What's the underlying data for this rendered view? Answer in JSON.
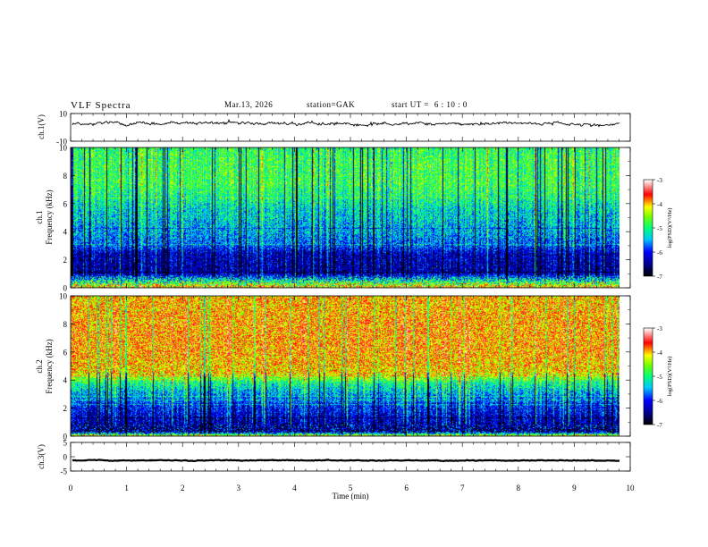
{
  "header": {
    "title": "VLF Spectra",
    "date": "Mar.13, 2026",
    "station": "station=GAK",
    "start_label": "start UT =",
    "start_time": "6 : 10 : 0"
  },
  "colors": {
    "waveform": "#000000",
    "colormap": [
      "#000000",
      "#0000ff",
      "#00d0ff",
      "#00ff60",
      "#ffff00",
      "#ff0000",
      "#ffffff"
    ]
  },
  "chart_data": [
    {
      "type": "line",
      "id": "ch1-waveform",
      "ylabel": "ch.1(V)",
      "ylim": [
        -10,
        10
      ],
      "ytick_labels": [
        "10",
        "-10"
      ],
      "x_range_min": [
        0,
        9.83
      ],
      "baseline_v": 2.8,
      "noise_v": 1.2
    },
    {
      "type": "heatmap",
      "id": "ch1-spectrogram",
      "ylabel_line1": "ch.1",
      "ylabel_line2": "Frequency (kHz)",
      "ylim": [
        0,
        10
      ],
      "ytick_labels": [
        "0",
        "2",
        "4",
        "6",
        "8",
        "10"
      ],
      "x_range_min": [
        0,
        9.83
      ],
      "value_label": "log(PSD)(V²/Hz)",
      "color_range": [
        -7,
        -3
      ],
      "colorbar_ticks": [
        "-3",
        "-4",
        "-5",
        "-6",
        "-7"
      ],
      "level_profile_khz": [
        [
          0,
          -3.9
        ],
        [
          0.5,
          -5.2
        ],
        [
          1.0,
          -6.4
        ],
        [
          2.4,
          -6.3
        ],
        [
          3.0,
          -5.8
        ],
        [
          4.0,
          -5.5
        ],
        [
          5.5,
          -5.3
        ],
        [
          6.5,
          -5.0
        ],
        [
          7.5,
          -4.8
        ],
        [
          9.0,
          -4.8
        ],
        [
          10,
          -4.9
        ]
      ]
    },
    {
      "type": "heatmap",
      "id": "ch2-spectrogram",
      "ylabel_line1": "ch.2",
      "ylabel_line2": "Frequency (kHz)",
      "ylim": [
        0,
        10
      ],
      "ytick_labels": [
        "0",
        "2",
        "4",
        "6",
        "8",
        "10"
      ],
      "x_range_min": [
        0,
        9.83
      ],
      "value_label": "log(PSD)(V²/Hz)",
      "color_range": [
        -7,
        -3
      ],
      "colorbar_ticks": [
        "-3",
        "-4",
        "-5",
        "-6",
        "-7"
      ],
      "level_profile_khz": [
        [
          0,
          -4.2
        ],
        [
          0.3,
          -6.5
        ],
        [
          2.0,
          -6.0
        ],
        [
          3.0,
          -5.5
        ],
        [
          3.8,
          -5.0
        ],
        [
          4.5,
          -4.1
        ],
        [
          6.0,
          -3.9
        ],
        [
          8.0,
          -3.9
        ],
        [
          10,
          -4.0
        ]
      ]
    },
    {
      "type": "line",
      "id": "ch3-waveform",
      "ylabel": "ch.3(V)",
      "ylim": [
        -5,
        5
      ],
      "ytick_labels": [
        "5",
        "0",
        "-5"
      ],
      "x_range_min": [
        0,
        9.83
      ],
      "baseline_v": -1.3,
      "noise_v": 0.15
    }
  ],
  "x_axis": {
    "label": "Time (min)",
    "range": [
      0,
      10
    ],
    "tick_labels": [
      "0",
      "1",
      "2",
      "3",
      "4",
      "5",
      "6",
      "7",
      "8",
      "9",
      "10"
    ]
  }
}
